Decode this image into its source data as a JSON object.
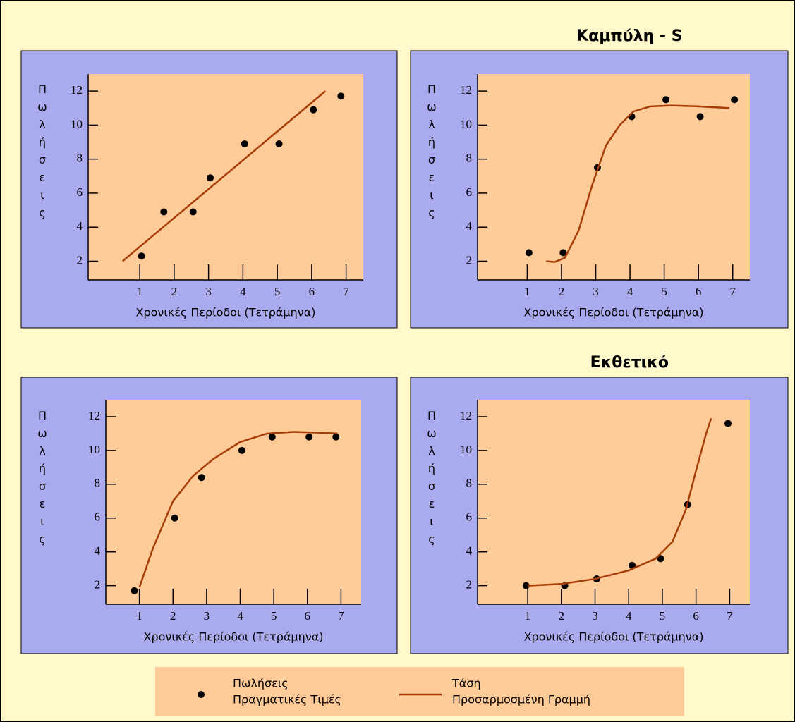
{
  "chart_data": [
    {
      "type": "scatter",
      "y_label": "Πωλήσεις",
      "x_label": "Χρονικές Περίοδοι (Τετράμηνα)",
      "xlim": [
        -0.5,
        7.5
      ],
      "ylim": [
        0.9,
        13
      ],
      "xticks": [
        1,
        2,
        3,
        4,
        5,
        6,
        7
      ],
      "yticks": [
        2,
        4,
        6,
        8,
        10,
        12
      ],
      "series": [
        {
          "mode": "markers",
          "color": "#000000",
          "x": [
            1.05,
            1.7,
            2.55,
            3.05,
            4.05,
            5.05,
            6.05,
            6.85
          ],
          "values": [
            2.3,
            4.9,
            4.9,
            6.9,
            8.9,
            8.9,
            10.9,
            11.7
          ]
        },
        {
          "mode": "line",
          "color": "#a63c06",
          "x": [
            0.5,
            6.4
          ],
          "values": [
            2,
            12
          ]
        }
      ]
    },
    {
      "type": "scatter",
      "title": "Καμπύλη - S",
      "y_label": "Πωλήσεις",
      "x_label": "Χρονικές Περίοδοι (Τετράμηνα)",
      "xlim": [
        -0.45,
        7.5
      ],
      "ylim": [
        0.9,
        13
      ],
      "xticks": [
        1,
        2,
        3,
        4,
        5,
        6,
        7
      ],
      "yticks": [
        2,
        4,
        6,
        8,
        10,
        12
      ],
      "series": [
        {
          "mode": "markers",
          "color": "#000000",
          "x": [
            1.05,
            2.05,
            3.05,
            4.05,
            5.05,
            6.05,
            7.05
          ],
          "values": [
            2.5,
            2.5,
            7.5,
            10.5,
            11.5,
            10.5,
            11.5
          ]
        },
        {
          "mode": "line",
          "color": "#a63c06",
          "x": [
            1.55,
            1.8,
            2.1,
            2.5,
            2.9,
            3.3,
            3.7,
            4.1,
            4.6,
            5.2,
            6,
            6.9
          ],
          "values": [
            2,
            1.95,
            2.2,
            3.8,
            6.5,
            8.8,
            10,
            10.8,
            11.1,
            11.15,
            11.1,
            11
          ]
        }
      ]
    },
    {
      "type": "scatter",
      "y_label": "Πωλήσεις",
      "x_label": "Χρονικές Περίοδοι (Τετράμηνα)",
      "xlim": [
        0,
        7.6
      ],
      "ylim": [
        0.9,
        13
      ],
      "xticks": [
        1,
        2,
        3,
        4,
        5,
        6,
        7
      ],
      "yticks": [
        2,
        4,
        6,
        8,
        10,
        12
      ],
      "series": [
        {
          "mode": "markers",
          "color": "#000000",
          "x": [
            0.85,
            2.05,
            2.85,
            4.05,
            4.95,
            6.05,
            6.85
          ],
          "values": [
            1.7,
            6,
            8.4,
            10,
            10.8,
            10.8,
            10.8
          ]
        },
        {
          "mode": "line",
          "color": "#a63c06",
          "x": [
            1,
            1.4,
            2,
            2.6,
            3.2,
            4,
            4.8,
            5.6,
            6.4,
            6.9
          ],
          "values": [
            1.9,
            4.2,
            7,
            8.5,
            9.5,
            10.5,
            11,
            11.1,
            11.05,
            11
          ]
        }
      ]
    },
    {
      "type": "scatter",
      "title": "Εκθετικό",
      "y_label": "Πωλήσεις",
      "x_label": "Χρονικές Περίοδοι (Τετράμηνα)",
      "xlim": [
        -0.49,
        7.6
      ],
      "ylim": [
        0.9,
        13
      ],
      "xticks": [
        1,
        2,
        3,
        4,
        5,
        6,
        7
      ],
      "yticks": [
        2,
        4,
        6,
        8,
        10,
        12
      ],
      "series": [
        {
          "mode": "markers",
          "color": "#000000",
          "x": [
            0.95,
            2.1,
            3.05,
            4.1,
            4.95,
            5.75,
            6.95
          ],
          "values": [
            2,
            2,
            2.4,
            3.2,
            3.6,
            6.8,
            11.6
          ]
        },
        {
          "mode": "line",
          "color": "#a63c06",
          "x": [
            1,
            2,
            3,
            4,
            4.8,
            5.3,
            5.7,
            6,
            6.3,
            6.45
          ],
          "values": [
            2,
            2.1,
            2.4,
            2.9,
            3.6,
            4.6,
            6.5,
            8.8,
            11,
            11.9
          ]
        }
      ]
    }
  ],
  "legend": [
    {
      "name": "Πωλήσεις",
      "description": "Πραγματικές Τιμές",
      "mode": "markers",
      "color": "#000000"
    },
    {
      "name": "Τάση",
      "description": "Προσαρμοσμένη Γραμμή",
      "mode": "line",
      "color": "#a63c06"
    }
  ]
}
